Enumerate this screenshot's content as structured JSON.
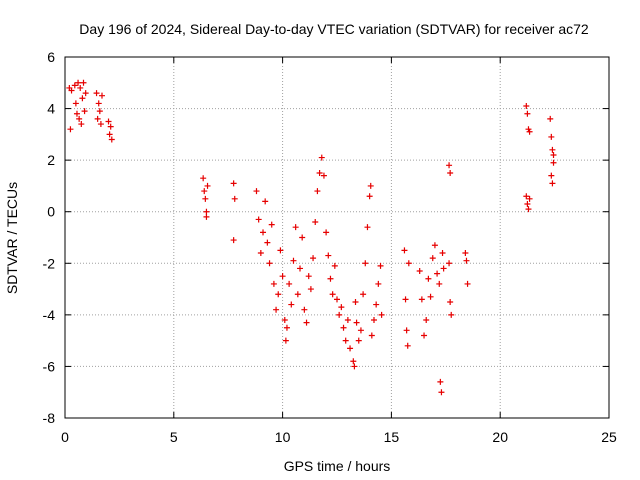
{
  "chart_data": {
    "type": "scatter",
    "title": "Day 196 of 2024, Sidereal Day-to-day VTEC variation (SDTVAR) for receiver ac72",
    "xlabel": "GPS time / hours",
    "ylabel": "SDTVAR / TECUs",
    "xlim": [
      0,
      25
    ],
    "ylim": [
      -8,
      6
    ],
    "xticks": [
      0,
      5,
      10,
      15,
      20,
      25
    ],
    "yticks": [
      -8,
      -6,
      -4,
      -2,
      0,
      2,
      4,
      6
    ],
    "grid": true,
    "marker": "plus",
    "color": "#e60000",
    "series": [
      {
        "name": "SDTVAR",
        "points": [
          [
            0.2,
            4.8
          ],
          [
            0.25,
            3.2
          ],
          [
            0.3,
            4.7
          ],
          [
            0.45,
            4.9
          ],
          [
            0.5,
            4.2
          ],
          [
            0.55,
            3.8
          ],
          [
            0.6,
            5.0
          ],
          [
            0.65,
            3.6
          ],
          [
            0.7,
            4.8
          ],
          [
            0.75,
            3.4
          ],
          [
            0.8,
            4.4
          ],
          [
            0.85,
            5.0
          ],
          [
            0.9,
            3.9
          ],
          [
            0.95,
            4.6
          ],
          [
            1.45,
            4.6
          ],
          [
            1.5,
            3.6
          ],
          [
            1.55,
            4.2
          ],
          [
            1.6,
            3.9
          ],
          [
            1.65,
            3.4
          ],
          [
            1.7,
            4.5
          ],
          [
            2.0,
            3.5
          ],
          [
            2.05,
            3.0
          ],
          [
            2.1,
            3.3
          ],
          [
            2.15,
            2.8
          ],
          [
            6.35,
            1.3
          ],
          [
            6.4,
            0.8
          ],
          [
            6.45,
            0.5
          ],
          [
            6.5,
            -0.2
          ],
          [
            6.5,
            0.0
          ],
          [
            6.55,
            1.0
          ],
          [
            7.75,
            1.1
          ],
          [
            7.8,
            0.5
          ],
          [
            7.75,
            -1.1
          ],
          [
            8.8,
            0.8
          ],
          [
            8.9,
            -0.3
          ],
          [
            9.0,
            -1.6
          ],
          [
            9.1,
            -0.8
          ],
          [
            9.2,
            0.4
          ],
          [
            9.3,
            -1.2
          ],
          [
            9.4,
            -2.0
          ],
          [
            9.5,
            -0.5
          ],
          [
            9.6,
            -2.8
          ],
          [
            9.7,
            -3.8
          ],
          [
            9.8,
            -3.2
          ],
          [
            9.9,
            -1.5
          ],
          [
            10.0,
            -2.5
          ],
          [
            10.1,
            -4.2
          ],
          [
            10.15,
            -5.0
          ],
          [
            10.2,
            -4.5
          ],
          [
            10.3,
            -2.8
          ],
          [
            10.4,
            -3.6
          ],
          [
            10.5,
            -1.9
          ],
          [
            10.6,
            -0.6
          ],
          [
            10.7,
            -3.2
          ],
          [
            10.8,
            -2.2
          ],
          [
            10.9,
            -1.0
          ],
          [
            11.0,
            -3.8
          ],
          [
            11.1,
            -4.3
          ],
          [
            11.2,
            -2.5
          ],
          [
            11.3,
            -3.0
          ],
          [
            11.4,
            -1.8
          ],
          [
            11.5,
            -0.4
          ],
          [
            11.6,
            0.8
          ],
          [
            11.7,
            1.5
          ],
          [
            11.8,
            2.1
          ],
          [
            11.9,
            1.4
          ],
          [
            12.0,
            -0.8
          ],
          [
            12.1,
            -1.7
          ],
          [
            12.2,
            -2.6
          ],
          [
            12.3,
            -3.2
          ],
          [
            12.4,
            -2.1
          ],
          [
            12.5,
            -3.4
          ],
          [
            12.6,
            -4.0
          ],
          [
            12.7,
            -3.7
          ],
          [
            12.8,
            -4.5
          ],
          [
            12.9,
            -5.0
          ],
          [
            13.0,
            -4.2
          ],
          [
            13.1,
            -5.3
          ],
          [
            13.25,
            -5.8
          ],
          [
            13.3,
            -6.0
          ],
          [
            13.35,
            -3.5
          ],
          [
            13.4,
            -4.3
          ],
          [
            13.5,
            -5.0
          ],
          [
            13.6,
            -4.6
          ],
          [
            13.7,
            -3.2
          ],
          [
            13.8,
            -2.0
          ],
          [
            13.9,
            -0.6
          ],
          [
            14.0,
            0.6
          ],
          [
            14.05,
            1.0
          ],
          [
            14.1,
            -4.8
          ],
          [
            14.2,
            -4.2
          ],
          [
            14.3,
            -3.6
          ],
          [
            14.4,
            -2.8
          ],
          [
            14.5,
            -2.1
          ],
          [
            14.55,
            -4.0
          ],
          [
            15.6,
            -1.5
          ],
          [
            15.65,
            -3.4
          ],
          [
            15.7,
            -4.6
          ],
          [
            15.75,
            -5.2
          ],
          [
            15.8,
            -2.0
          ],
          [
            16.3,
            -2.3
          ],
          [
            16.4,
            -3.4
          ],
          [
            16.5,
            -4.8
          ],
          [
            16.6,
            -4.2
          ],
          [
            16.7,
            -2.6
          ],
          [
            16.8,
            -3.3
          ],
          [
            16.9,
            -1.8
          ],
          [
            17.0,
            -1.3
          ],
          [
            17.1,
            -2.4
          ],
          [
            17.2,
            -2.8
          ],
          [
            17.25,
            -6.6
          ],
          [
            17.3,
            -7.0
          ],
          [
            17.35,
            -1.6
          ],
          [
            17.4,
            -2.2
          ],
          [
            17.65,
            1.8
          ],
          [
            17.7,
            1.5
          ],
          [
            17.65,
            -2.0
          ],
          [
            17.7,
            -3.5
          ],
          [
            17.75,
            -4.0
          ],
          [
            18.4,
            -1.6
          ],
          [
            18.45,
            -1.9
          ],
          [
            18.5,
            -2.8
          ],
          [
            21.2,
            4.1
          ],
          [
            21.25,
            3.8
          ],
          [
            21.3,
            3.2
          ],
          [
            21.35,
            3.1
          ],
          [
            21.2,
            0.6
          ],
          [
            21.25,
            0.3
          ],
          [
            21.3,
            0.1
          ],
          [
            21.35,
            0.5
          ],
          [
            22.3,
            3.6
          ],
          [
            22.35,
            2.9
          ],
          [
            22.4,
            2.4
          ],
          [
            22.45,
            1.9
          ],
          [
            22.35,
            1.4
          ],
          [
            22.4,
            1.1
          ],
          [
            22.45,
            2.2
          ]
        ]
      }
    ]
  }
}
